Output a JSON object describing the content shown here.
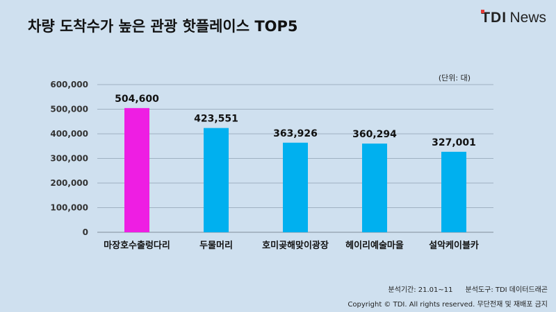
{
  "title": "차량 도착수가 높은 관광 핫플레이스 TOP5",
  "logo": {
    "brand": "TDI",
    "suffix": "News"
  },
  "colors": {
    "highlight": "#ee1ee3",
    "bar": "#00b0ef",
    "grid": "#9fb1c1"
  },
  "footer": {
    "period": "분석기간: 21.01~11",
    "tool": "분석도구: TDI 데이터드래곤",
    "copyright": "Copyright © TDI. All rights reserved. 무단전재 및 재배포 금지"
  },
  "chart_data": {
    "type": "bar",
    "unit_label": "(단위: 대)",
    "categories": [
      "마장호수출렁다리",
      "두물머리",
      "호미곶해맞이광장",
      "헤이리예술마을",
      "설악케이블카"
    ],
    "values": [
      504600,
      423551,
      363926,
      360294,
      327001
    ],
    "value_labels": [
      "504,600",
      "423,551",
      "363,926",
      "360,294",
      "327,001"
    ],
    "highlight_index": 0,
    "ylim": [
      0,
      600000
    ],
    "yticks": [
      0,
      100000,
      200000,
      300000,
      400000,
      500000,
      600000
    ],
    "ytick_labels": [
      "0",
      "100,000",
      "200,000",
      "300,000",
      "400,000",
      "500,000",
      "600,000"
    ],
    "grid": true
  }
}
